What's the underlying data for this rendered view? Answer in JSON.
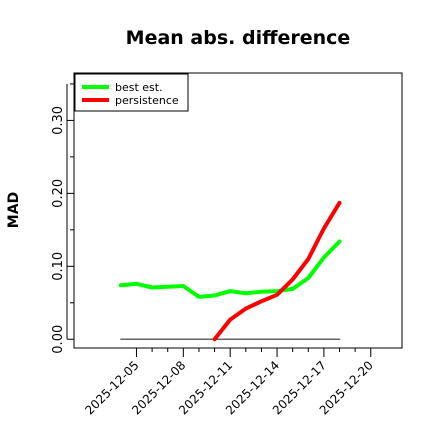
{
  "chart_data": {
    "type": "line",
    "title": "Mean abs. difference",
    "xlabel": "",
    "ylabel": "MAD",
    "x_ticks": [
      "2025-12-05",
      "2025-12-08",
      "2025-12-11",
      "2025-12-14",
      "2025-12-17",
      "2025-12-20"
    ],
    "y_ticks": [
      "0.00",
      "0.10",
      "0.20",
      "0.30"
    ],
    "xlim": [
      "2025-12-01",
      "2025-12-22"
    ],
    "ylim": [
      -0.012,
      0.365
    ],
    "grid": false,
    "legend_position": "top-left",
    "series": [
      {
        "name": "best est.",
        "color": "#00ff00",
        "x": [
          "2025-12-04",
          "2025-12-05",
          "2025-12-06",
          "2025-12-07",
          "2025-12-08",
          "2025-12-09",
          "2025-12-10",
          "2025-12-11",
          "2025-12-12",
          "2025-12-13",
          "2025-12-14",
          "2025-12-15",
          "2025-12-16",
          "2025-12-17",
          "2025-12-18"
        ],
        "y": [
          0.074,
          0.076,
          0.071,
          0.072,
          0.073,
          0.058,
          0.06,
          0.066,
          0.063,
          0.065,
          0.066,
          0.069,
          0.084,
          0.112,
          0.134
        ]
      },
      {
        "name": "persistence",
        "color": "#ff0000",
        "x": [
          "2025-12-10",
          "2025-12-11",
          "2025-12-12",
          "2025-12-13",
          "2025-12-14",
          "2025-12-15",
          "2025-12-16",
          "2025-12-17",
          "2025-12-18"
        ],
        "y": [
          0.0,
          0.027,
          0.042,
          0.052,
          0.061,
          0.082,
          0.11,
          0.152,
          0.187
        ]
      },
      {
        "name": "",
        "color": "#666666",
        "x": [
          "2025-12-04",
          "2025-12-18"
        ],
        "y": [
          0.0,
          0.0
        ]
      }
    ]
  }
}
